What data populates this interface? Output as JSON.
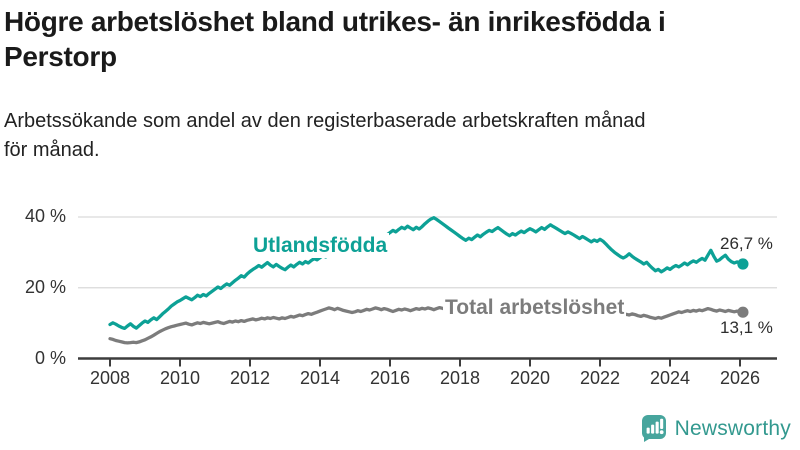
{
  "header": {
    "title_lines": [
      "Högre arbetslöshet bland utrikes- än inrikesfödda i",
      "Perstorp"
    ],
    "subtitle_lines": [
      "Arbetssökande som andel av den registerbaserade arbetskraften månad",
      "för månad."
    ]
  },
  "branding": {
    "logo_text": "Newsworthy",
    "logo_icon": "bar-chart-speech-bubble-icon",
    "logo_text_color": "#33998F",
    "logo_icon_color": "#47A59D"
  },
  "chart_data": {
    "type": "line",
    "title": "Högre arbetslöshet bland utrikes- än inrikesfödda i Perstorp",
    "subtitle": "Arbetssökande som andel av den registerbaserade arbetskraften månad för månad.",
    "x_interval": "monthly",
    "x_start": "2008-01",
    "x_end": "2026-02",
    "x_tick_years": [
      2008,
      2010,
      2012,
      2014,
      2016,
      2018,
      2020,
      2022,
      2024,
      2026
    ],
    "y_ticks": [
      {
        "value": 0,
        "label": "0 %"
      },
      {
        "value": 20,
        "label": "20 %"
      },
      {
        "value": 40,
        "label": "40 %"
      }
    ],
    "ylim": [
      0,
      44
    ],
    "grid": "horizontal",
    "legend_position": "inline-labels",
    "colors": {
      "axis": "#3d3d3d",
      "grid": "#d9d9d9",
      "tick_text": "#333333"
    },
    "series": [
      {
        "name": "Utlandsfödda",
        "color": "#0DA196",
        "end_label": "26,7 %",
        "last_value": 26.7,
        "values": [
          9.6,
          10.1,
          9.7,
          9.2,
          8.8,
          8.5,
          9.2,
          9.8,
          9.1,
          8.6,
          9.3,
          10.0,
          10.6,
          10.2,
          10.9,
          11.5,
          11.0,
          11.8,
          12.6,
          13.3,
          14.0,
          14.8,
          15.4,
          16.0,
          16.4,
          16.9,
          17.4,
          17.0,
          16.6,
          17.2,
          17.9,
          17.5,
          18.1,
          17.7,
          18.4,
          19.0,
          19.6,
          20.2,
          19.8,
          20.5,
          21.1,
          20.7,
          21.4,
          22.1,
          22.7,
          23.4,
          23.0,
          23.9,
          24.6,
          25.2,
          25.7,
          26.3,
          25.8,
          26.5,
          27.1,
          26.4,
          25.9,
          26.6,
          26.0,
          25.5,
          25.1,
          25.8,
          26.4,
          25.9,
          26.6,
          27.2,
          26.7,
          27.4,
          27.0,
          27.7,
          28.2,
          27.9,
          28.5,
          29.1,
          28.7,
          29.4,
          30.0,
          29.6,
          30.3,
          29.9,
          30.6,
          31.2,
          30.8,
          31.5,
          32.0,
          31.6,
          32.3,
          32.9,
          32.5,
          33.2,
          33.8,
          33.4,
          34.1,
          34.7,
          34.3,
          35.0,
          35.6,
          36.2,
          35.8,
          36.5,
          37.1,
          36.7,
          37.4,
          36.9,
          36.4,
          37.1,
          36.6,
          37.3,
          38.1,
          38.8,
          39.4,
          39.8,
          39.3,
          38.7,
          38.1,
          37.5,
          36.9,
          36.3,
          35.7,
          35.1,
          34.5,
          33.9,
          33.4,
          34.0,
          33.6,
          34.3,
          34.9,
          34.4,
          35.1,
          35.7,
          36.2,
          35.9,
          36.5,
          37.0,
          36.4,
          35.8,
          35.2,
          34.7,
          35.3,
          34.9,
          35.5,
          36.0,
          35.6,
          36.2,
          36.7,
          36.3,
          35.8,
          36.4,
          37.0,
          36.5,
          37.2,
          37.8,
          37.3,
          36.8,
          36.3,
          35.8,
          35.3,
          35.8,
          35.4,
          34.9,
          34.4,
          33.9,
          34.5,
          34.0,
          33.5,
          33.0,
          33.5,
          33.1,
          33.7,
          33.2,
          32.4,
          31.5,
          30.7,
          30.0,
          29.4,
          28.8,
          28.4,
          28.9,
          29.6,
          28.9,
          28.3,
          27.8,
          27.3,
          26.7,
          27.2,
          26.3,
          25.5,
          24.8,
          25.2,
          24.5,
          25.0,
          25.6,
          25.2,
          25.8,
          26.3,
          25.9,
          26.4,
          27.0,
          26.5,
          27.1,
          27.6,
          27.2,
          27.8,
          28.3,
          27.8,
          29.2,
          30.6,
          28.9,
          27.5,
          27.9,
          28.6,
          29.2,
          28.1,
          27.4,
          27.0,
          27.3,
          27.0,
          26.7
        ]
      },
      {
        "name": "Total arbetslöshet",
        "color": "#7C7C7C",
        "end_label": "13,1 %",
        "last_value": 13.1,
        "values": [
          5.6,
          5.4,
          5.1,
          4.9,
          4.7,
          4.5,
          4.4,
          4.5,
          4.6,
          4.5,
          4.7,
          5.0,
          5.3,
          5.7,
          6.1,
          6.6,
          7.1,
          7.6,
          8.0,
          8.4,
          8.7,
          9.0,
          9.2,
          9.4,
          9.6,
          9.8,
          10.0,
          9.7,
          9.5,
          9.8,
          10.1,
          9.9,
          10.2,
          10.0,
          9.8,
          10.0,
          10.2,
          10.4,
          10.1,
          9.9,
          10.2,
          10.5,
          10.3,
          10.6,
          10.4,
          10.7,
          10.5,
          10.8,
          11.0,
          11.2,
          10.9,
          11.1,
          11.4,
          11.2,
          11.5,
          11.3,
          11.6,
          11.4,
          11.2,
          11.5,
          11.3,
          11.6,
          11.9,
          11.7,
          12.0,
          12.3,
          12.1,
          12.4,
          12.7,
          12.5,
          12.8,
          13.1,
          13.4,
          13.7,
          14.0,
          14.3,
          14.1,
          13.8,
          14.2,
          13.9,
          13.6,
          13.4,
          13.2,
          13.0,
          13.2,
          13.5,
          13.3,
          13.6,
          13.9,
          13.7,
          14.0,
          14.3,
          14.1,
          13.8,
          14.1,
          13.9,
          13.6,
          13.3,
          13.6,
          13.9,
          13.7,
          14.0,
          13.8,
          13.5,
          13.8,
          14.1,
          13.9,
          14.2,
          14.0,
          14.3,
          14.1,
          13.8,
          14.1,
          14.4,
          14.2,
          13.9,
          13.7,
          14.0,
          13.8,
          14.1,
          13.9,
          13.6,
          13.4,
          13.7,
          13.5,
          13.8,
          14.0,
          13.7,
          13.5,
          13.8,
          13.6,
          13.9,
          13.7,
          13.4,
          13.2,
          13.5,
          13.3,
          13.6,
          13.8,
          13.6,
          13.4,
          13.7,
          13.5,
          13.8,
          14.0,
          13.7,
          13.5,
          13.8,
          14.1,
          13.9,
          14.2,
          14.0,
          13.7,
          13.5,
          13.8,
          13.6,
          13.4,
          13.7,
          13.5,
          13.2,
          13.0,
          13.3,
          13.1,
          12.9,
          13.2,
          13.0,
          12.8,
          13.1,
          12.9,
          13.2,
          13.0,
          12.7,
          12.5,
          12.8,
          12.6,
          12.4,
          12.2,
          12.5,
          12.3,
          12.6,
          12.4,
          12.1,
          11.9,
          12.2,
          12.0,
          11.7,
          11.5,
          11.3,
          11.6,
          11.4,
          11.7,
          12.0,
          12.3,
          12.6,
          12.9,
          13.2,
          13.0,
          13.3,
          13.5,
          13.3,
          13.6,
          13.4,
          13.7,
          13.5,
          13.8,
          14.1,
          13.9,
          13.6,
          13.4,
          13.7,
          13.5,
          13.3,
          13.6,
          13.4,
          13.2,
          13.4,
          13.2,
          13.1
        ]
      }
    ]
  }
}
